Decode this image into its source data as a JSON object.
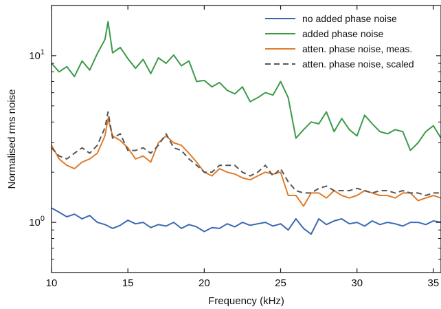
{
  "chart_data": {
    "type": "line",
    "title": "",
    "xlabel": "Frequency (kHz)",
    "ylabel": "Normalised rms noise",
    "xlim": [
      10,
      35.5
    ],
    "ylim": [
      0.5,
      20
    ],
    "yscale": "log",
    "grid": false,
    "legend_position": "top-right",
    "x_ticks": [
      {
        "value": 10,
        "label": "10"
      },
      {
        "value": 15,
        "label": "15"
      },
      {
        "value": 20,
        "label": "20"
      },
      {
        "value": 25,
        "label": "25"
      },
      {
        "value": 30,
        "label": "30"
      },
      {
        "value": 35,
        "label": "35"
      }
    ],
    "y_major_ticks": [
      {
        "value": 1,
        "base": "10",
        "exp": "0"
      },
      {
        "value": 10,
        "base": "10",
        "exp": "1"
      }
    ],
    "y_minor_ticks": [
      0.6,
      0.7,
      0.8,
      0.9,
      2,
      3,
      4,
      5,
      6,
      7,
      8,
      9
    ],
    "x": [
      10,
      10.5,
      11,
      11.5,
      12,
      12.5,
      13,
      13.5,
      13.7,
      14,
      14.5,
      15,
      15.5,
      16,
      16.5,
      17,
      17.5,
      18,
      18.5,
      19,
      19.5,
      20,
      20.5,
      21,
      21.5,
      22,
      22.5,
      23,
      23.5,
      24,
      24.5,
      25,
      25.5,
      26,
      26.5,
      27,
      27.5,
      28,
      28.5,
      29,
      29.5,
      30,
      30.5,
      31,
      31.5,
      32,
      32.5,
      33,
      33.5,
      34,
      34.5,
      35,
      35.5
    ],
    "series": [
      {
        "name": "no added phase noise",
        "color": "#3b68b3",
        "dash": "solid",
        "values": [
          1.22,
          1.15,
          1.08,
          1.12,
          1.05,
          1.1,
          1.0,
          0.97,
          0.95,
          0.92,
          0.96,
          1.03,
          0.98,
          1.0,
          0.93,
          0.97,
          0.95,
          1.0,
          0.92,
          0.97,
          0.94,
          0.88,
          0.93,
          0.92,
          0.98,
          0.94,
          1.0,
          0.96,
          0.98,
          1.0,
          0.95,
          0.98,
          0.9,
          1.05,
          0.92,
          0.85,
          1.05,
          0.97,
          1.02,
          1.05,
          0.98,
          1.0,
          0.95,
          1.02,
          0.97,
          1.0,
          0.98,
          0.95,
          1.0,
          1.0,
          0.97,
          1.02,
          1.0
        ]
      },
      {
        "name": "added phase noise",
        "color": "#3a9a48",
        "dash": "solid",
        "values": [
          9.0,
          8.0,
          8.6,
          7.5,
          9.3,
          8.2,
          10.3,
          12.5,
          16.0,
          10.4,
          11.2,
          9.6,
          8.4,
          9.5,
          7.8,
          9.7,
          9.0,
          10.1,
          8.7,
          9.3,
          7.0,
          7.1,
          6.5,
          6.9,
          6.2,
          5.9,
          6.5,
          5.3,
          5.6,
          6.0,
          5.8,
          7.0,
          5.6,
          3.2,
          3.6,
          4.0,
          3.9,
          4.6,
          3.5,
          4.2,
          3.6,
          3.3,
          4.4,
          3.9,
          3.5,
          3.4,
          3.6,
          3.5,
          2.7,
          3.0,
          3.5,
          3.8,
          3.2
        ]
      },
      {
        "name": "atten. phase noise, meas.",
        "color": "#e07b2a",
        "dash": "solid",
        "values": [
          2.9,
          2.4,
          2.2,
          2.1,
          2.3,
          2.4,
          2.6,
          3.3,
          4.2,
          3.3,
          3.1,
          2.8,
          2.4,
          2.5,
          2.3,
          3.0,
          3.3,
          3.0,
          2.9,
          2.6,
          2.3,
          2.0,
          1.9,
          2.1,
          2.0,
          1.95,
          1.85,
          1.8,
          1.9,
          2.0,
          1.95,
          2.0,
          1.45,
          1.45,
          1.25,
          1.5,
          1.5,
          1.4,
          1.55,
          1.45,
          1.4,
          1.45,
          1.55,
          1.5,
          1.45,
          1.45,
          1.4,
          1.5,
          1.5,
          1.35,
          1.4,
          1.45,
          1.4
        ]
      },
      {
        "name": "atten. phase noise, scaled",
        "color": "#555555",
        "dash": "dashed",
        "values": [
          2.8,
          2.5,
          2.4,
          2.6,
          2.8,
          2.6,
          2.9,
          3.7,
          4.6,
          3.2,
          3.4,
          2.7,
          2.7,
          2.8,
          2.6,
          2.9,
          3.4,
          2.8,
          2.7,
          2.4,
          2.2,
          2.0,
          2.0,
          2.2,
          2.2,
          2.2,
          2.0,
          1.9,
          2.0,
          2.2,
          1.9,
          2.1,
          1.75,
          1.55,
          1.5,
          1.5,
          1.6,
          1.65,
          1.55,
          1.55,
          1.55,
          1.6,
          1.55,
          1.5,
          1.55,
          1.55,
          1.5,
          1.55,
          1.5,
          1.5,
          1.45,
          1.5,
          1.5
        ]
      }
    ]
  }
}
